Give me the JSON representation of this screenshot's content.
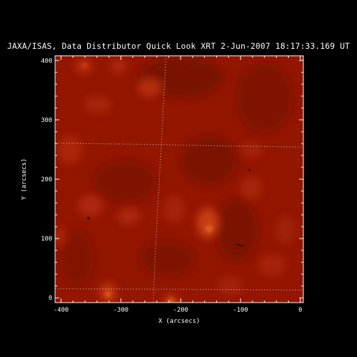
{
  "title": "JAXA/ISAS, Data Distributor Quick Look XRT  2-Jun-2007 18:17:33.169 UT",
  "axes": {
    "xlabel": "X (arcsecs)",
    "ylabel": "Y (arcsecs)",
    "xticks": [
      -400,
      -300,
      -200,
      -100,
      0
    ],
    "yticks": [
      0,
      100,
      200,
      300,
      400
    ],
    "xlim": [
      -410,
      5
    ],
    "ylim": [
      -8,
      408
    ]
  },
  "image": {
    "description_colors": {
      "background": "#000000",
      "base": "#8a0f00",
      "bright": "#e0401a",
      "dark": "#5e0700"
    },
    "colormap": "red-hot"
  }
}
